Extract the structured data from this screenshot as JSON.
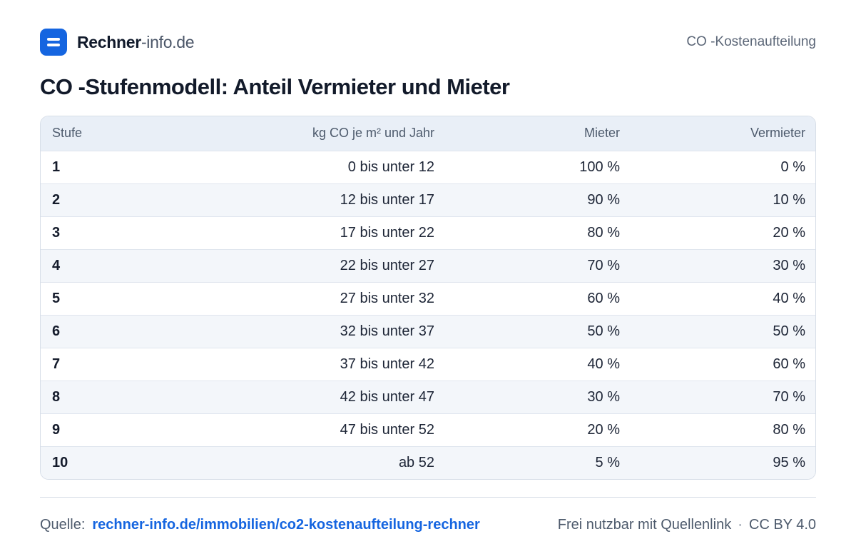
{
  "header": {
    "brand_strong": "Rechner",
    "brand_light": "-info.de",
    "page_label": "CO -Kostenaufteilung"
  },
  "title": "CO -Stufenmodell: Anteil Vermieter und Mieter",
  "table": {
    "headers": {
      "stufe": "Stufe",
      "co2": "kg CO  je m² und Jahr",
      "mieter": "Mieter",
      "vermieter": "Vermieter"
    },
    "rows": [
      {
        "stufe": "1",
        "co2": "0 bis unter 12",
        "mieter": "100 %",
        "vermieter": "0 %"
      },
      {
        "stufe": "2",
        "co2": "12 bis unter 17",
        "mieter": "90 %",
        "vermieter": "10 %"
      },
      {
        "stufe": "3",
        "co2": "17 bis unter 22",
        "mieter": "80 %",
        "vermieter": "20 %"
      },
      {
        "stufe": "4",
        "co2": "22 bis unter 27",
        "mieter": "70 %",
        "vermieter": "30 %"
      },
      {
        "stufe": "5",
        "co2": "27 bis unter 32",
        "mieter": "60 %",
        "vermieter": "40 %"
      },
      {
        "stufe": "6",
        "co2": "32 bis unter 37",
        "mieter": "50 %",
        "vermieter": "50 %"
      },
      {
        "stufe": "7",
        "co2": "37 bis unter 42",
        "mieter": "40 %",
        "vermieter": "60 %"
      },
      {
        "stufe": "8",
        "co2": "42 bis unter 47",
        "mieter": "30 %",
        "vermieter": "70 %"
      },
      {
        "stufe": "9",
        "co2": "47 bis unter 52",
        "mieter": "20 %",
        "vermieter": "80 %"
      },
      {
        "stufe": "10",
        "co2": "ab 52",
        "mieter": "5 %",
        "vermieter": "95 %"
      }
    ]
  },
  "footer": {
    "source_label": "Quelle:",
    "source_link": "rechner-info.de/immobilien/co2-kostenaufteilung-rechner",
    "usage": "Frei nutzbar mit Quellenlink",
    "separator": "·",
    "license": "CC BY 4.0"
  },
  "colors": {
    "accent": "#1565e0",
    "header_bg": "#e9eff7",
    "stripe_bg": "#f3f6fa",
    "border": "#d7dee8"
  },
  "icons": {
    "logo": "menu-lines-icon"
  }
}
